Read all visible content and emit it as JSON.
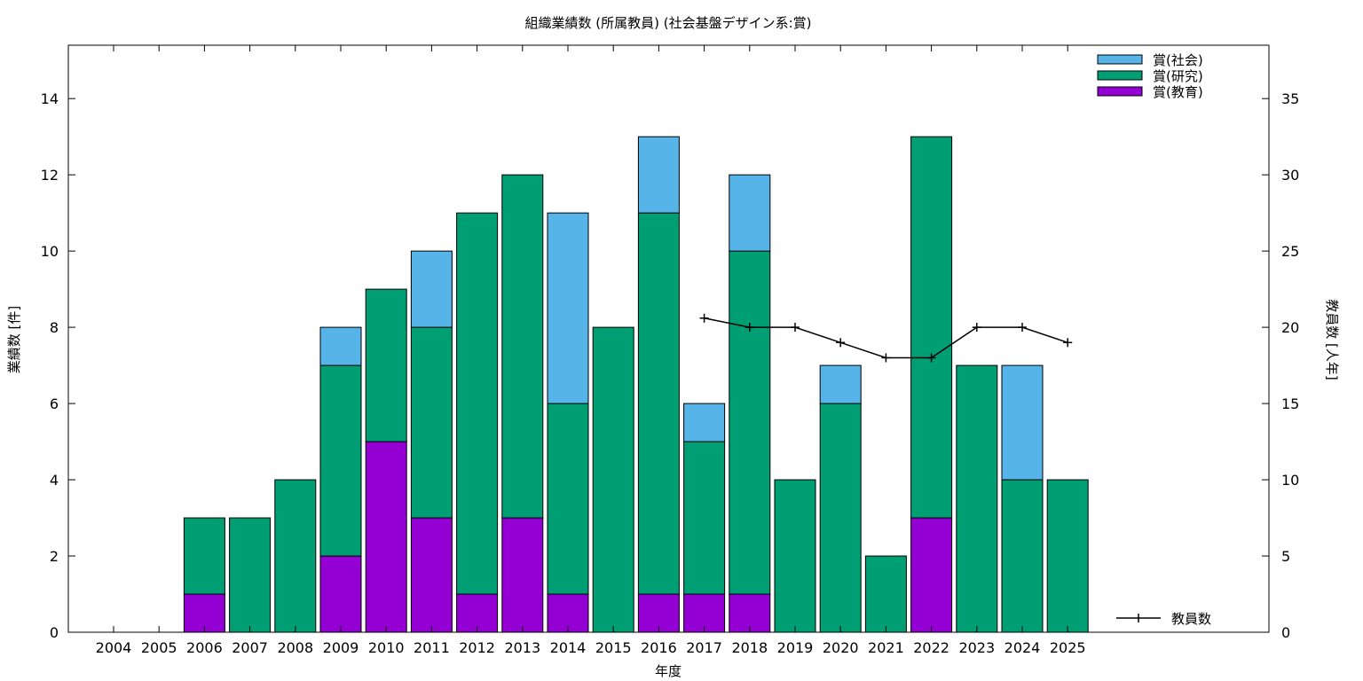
{
  "chart_data": {
    "type": "bar",
    "title": "組織業績数 (所属教員) (社会基盤デザイン系:賞)",
    "xlabel": "年度",
    "ylabel": "業績数 [件]",
    "y2label": "教員数 [人年]",
    "ylim": [
      0,
      15.4
    ],
    "y2lim": [
      0,
      38.5
    ],
    "yticks": [
      0,
      2,
      4,
      6,
      8,
      10,
      12,
      14
    ],
    "y2ticks": [
      0,
      5,
      10,
      15,
      20,
      25,
      30,
      35
    ],
    "categories": [
      "2004",
      "2005",
      "2006",
      "2007",
      "2008",
      "2009",
      "2010",
      "2011",
      "2012",
      "2013",
      "2014",
      "2015",
      "2016",
      "2017",
      "2018",
      "2019",
      "2020",
      "2021",
      "2022",
      "2023",
      "2024",
      "2025"
    ],
    "stacked": true,
    "series": [
      {
        "name": "賞(教育)",
        "color": "#9400d3",
        "values": [
          0,
          0,
          1,
          0,
          0,
          2,
          5,
          3,
          1,
          3,
          1,
          0,
          1,
          1,
          1,
          0,
          0,
          0,
          3,
          0,
          0,
          0
        ]
      },
      {
        "name": "賞(研究)",
        "color": "#009e73",
        "values": [
          0,
          0,
          2,
          3,
          4,
          5,
          4,
          5,
          10,
          9,
          5,
          8,
          10,
          4,
          9,
          4,
          6,
          2,
          10,
          7,
          4,
          4
        ]
      },
      {
        "name": "賞(社会)",
        "color": "#56b4e9",
        "values": [
          0,
          0,
          0,
          0,
          0,
          1,
          0,
          2,
          0,
          0,
          5,
          0,
          2,
          1,
          2,
          0,
          1,
          0,
          0,
          0,
          3,
          0
        ]
      }
    ],
    "line_series": {
      "name": "教員数",
      "axis": "y2",
      "color": "#000000",
      "x": [
        "2017",
        "2018",
        "2019",
        "2020",
        "2021",
        "2022",
        "2023",
        "2024",
        "2025"
      ],
      "values": [
        20.6,
        20,
        20,
        19,
        18,
        18,
        20,
        20,
        19
      ]
    },
    "legend": {
      "bars": "top-right",
      "line": "bottom-right"
    },
    "grid": false
  }
}
